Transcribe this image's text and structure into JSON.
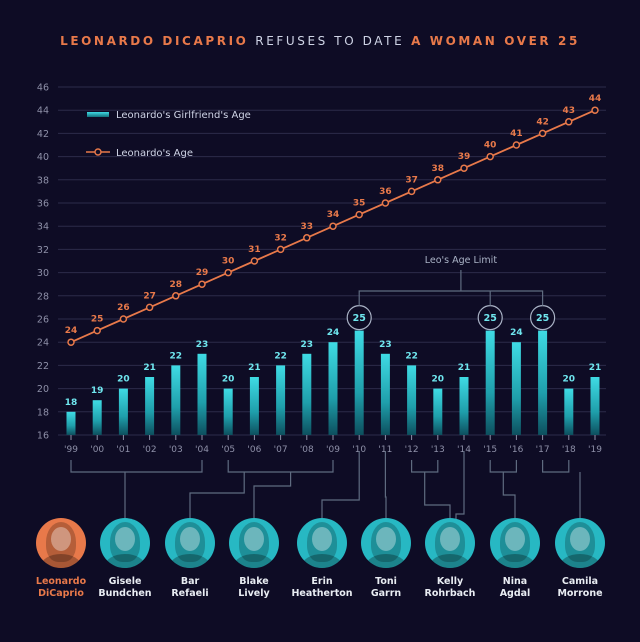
{
  "title": {
    "part1": "LEONARDO DICAPRIO",
    "part2": "REFUSES TO DATE",
    "part3": "A WOMAN OVER 25"
  },
  "colors": {
    "background": "#0e0c25",
    "leo_orange": "#e8794a",
    "girlfriend_teal": "#2fc4cf",
    "grid": "#2c2b4a",
    "axis_text": "#8e90a8",
    "bracket": "#5f6b80",
    "name_white": "#e9edf3"
  },
  "chart_data": {
    "type": "bar",
    "categories": [
      "'99",
      "'00",
      "'01",
      "'02",
      "'03",
      "'04",
      "'05",
      "'06",
      "'07",
      "'08",
      "'09",
      "'10",
      "'11",
      "'12",
      "'13",
      "'14",
      "'15",
      "'16",
      "'17",
      "'18",
      "'19"
    ],
    "series": [
      {
        "name": "Leonardo's Girlfriend's Age",
        "type": "bar",
        "values": [
          18,
          19,
          20,
          21,
          22,
          23,
          20,
          21,
          22,
          23,
          24,
          25,
          23,
          22,
          20,
          21,
          25,
          24,
          25,
          20,
          21
        ]
      },
      {
        "name": "Leonardo's Age",
        "type": "line",
        "values": [
          24,
          25,
          26,
          27,
          28,
          29,
          30,
          31,
          32,
          33,
          34,
          35,
          36,
          37,
          38,
          39,
          40,
          41,
          42,
          43,
          44
        ]
      }
    ],
    "ylim": [
      16,
      46
    ],
    "yticks": [
      16,
      18,
      20,
      22,
      24,
      26,
      28,
      30,
      32,
      34,
      36,
      38,
      40,
      42,
      44,
      46
    ],
    "grid": true,
    "legend": "top-left",
    "annotation": "Leo's Age Limit",
    "limit_value": 25
  },
  "people": [
    {
      "name_line1": "Leonardo",
      "name_line2": "DiCaprio",
      "color": "#e8794a"
    },
    {
      "name_line1": "Gisele",
      "name_line2": "Bundchen",
      "color": "#2fc4cf"
    },
    {
      "name_line1": "Bar",
      "name_line2": "Refaeli",
      "color": "#2fc4cf"
    },
    {
      "name_line1": "Blake",
      "name_line2": "Lively",
      "color": "#2fc4cf"
    },
    {
      "name_line1": "Erin",
      "name_line2": "Heatherton",
      "color": "#2fc4cf"
    },
    {
      "name_line1": "Toni",
      "name_line2": "Garrn",
      "color": "#2fc4cf"
    },
    {
      "name_line1": "Kelly",
      "name_line2": "Rohrbach",
      "color": "#2fc4cf"
    },
    {
      "name_line1": "Nina",
      "name_line2": "Agdal",
      "color": "#2fc4cf"
    },
    {
      "name_line1": "Camila",
      "name_line2": "Morrone",
      "color": "#2fc4cf"
    }
  ]
}
